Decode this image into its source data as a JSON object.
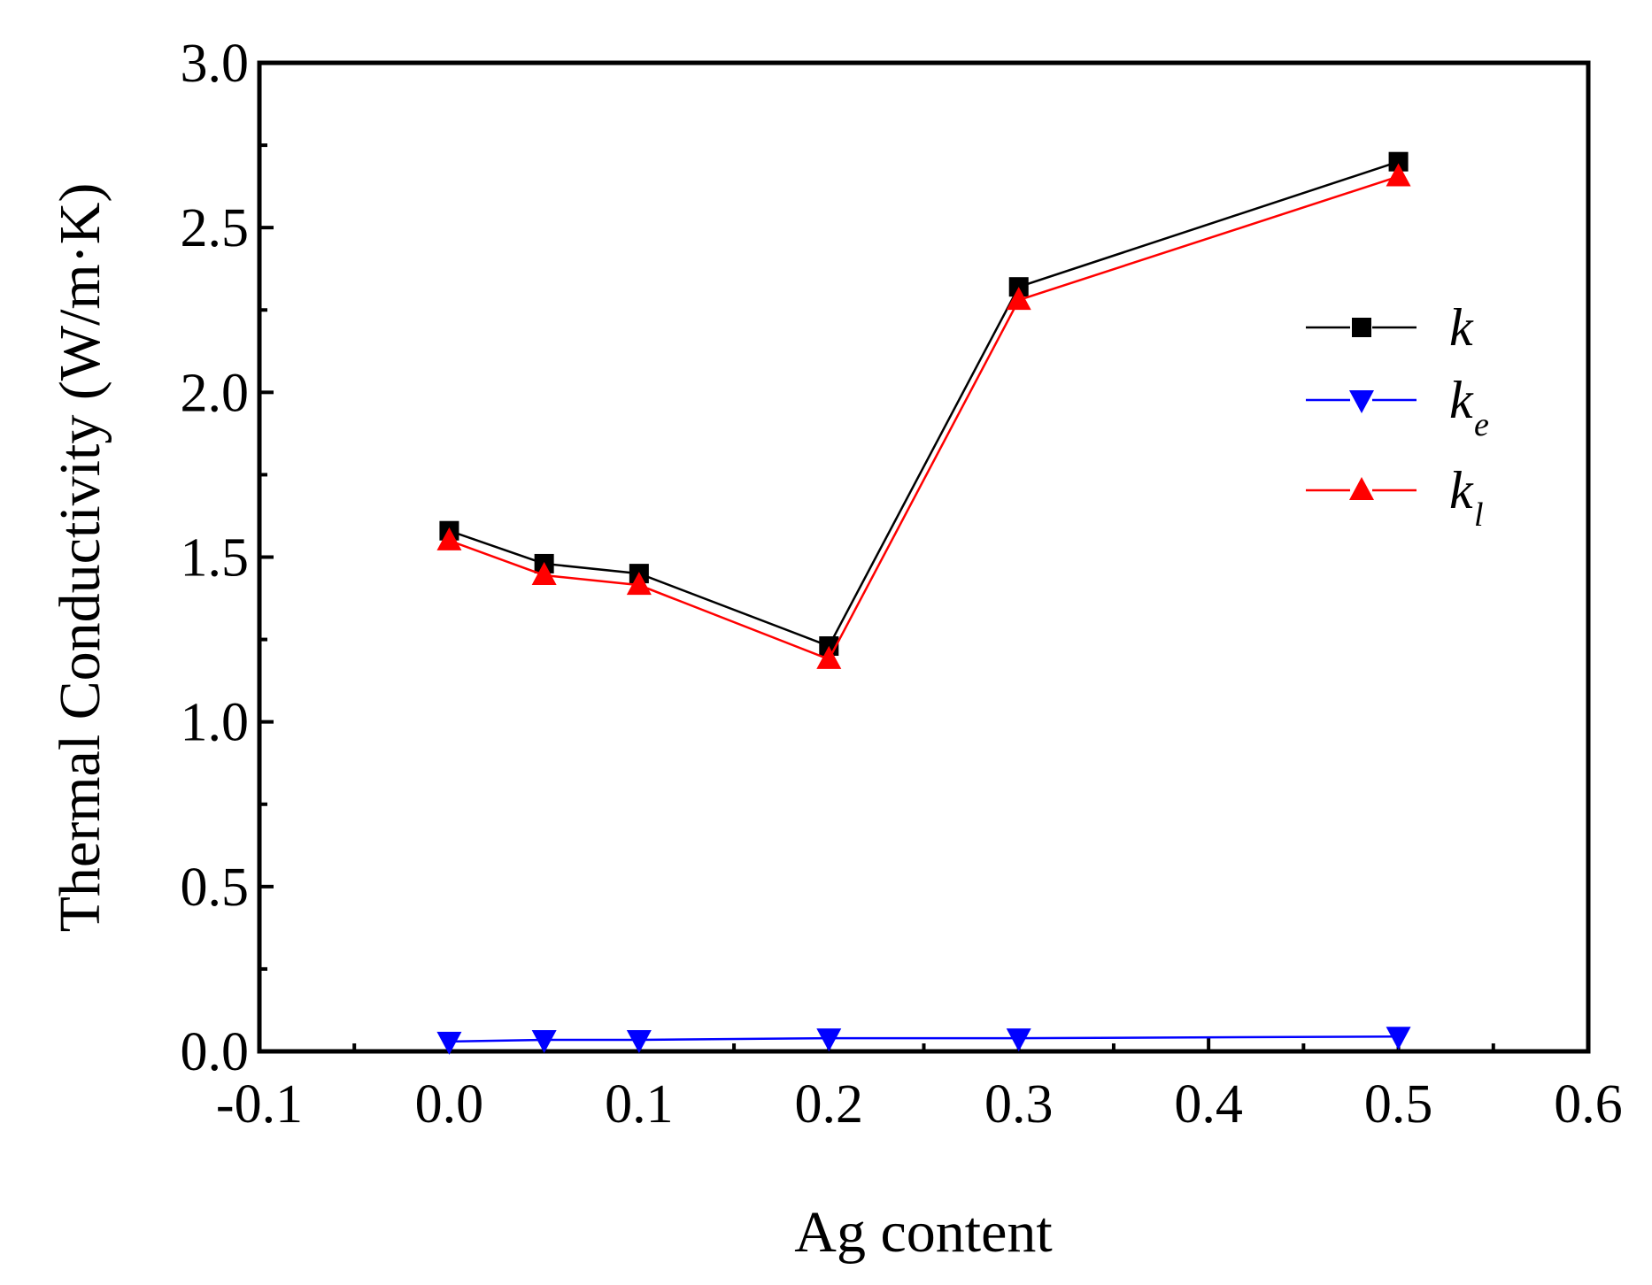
{
  "chart_data": {
    "type": "line",
    "title": "",
    "xlabel": "Ag content",
    "ylabel": "Thermal Conductivity (W/m·K)",
    "xlim": [
      -0.1,
      0.6
    ],
    "ylim": [
      0.0,
      3.0
    ],
    "xticks": [
      -0.1,
      0.0,
      0.1,
      0.2,
      0.3,
      0.4,
      0.5,
      0.6
    ],
    "xtick_labels": [
      "-0.1",
      "0.0",
      "0.1",
      "0.2",
      "0.3",
      "0.4",
      "0.5",
      "0.6"
    ],
    "yticks": [
      0.0,
      0.5,
      1.0,
      1.5,
      2.0,
      2.5,
      3.0
    ],
    "ytick_labels": [
      "0.0",
      "0.5",
      "1.0",
      "1.5",
      "2.0",
      "2.5",
      "3.0"
    ],
    "grid": false,
    "legend_position": "top-right",
    "x": [
      0.0,
      0.05,
      0.1,
      0.2,
      0.3,
      0.5
    ],
    "series": [
      {
        "name": "k",
        "label_main": "k",
        "label_sub": "",
        "color": "#000000",
        "marker": "square",
        "values": [
          1.58,
          1.48,
          1.45,
          1.23,
          2.32,
          2.7
        ]
      },
      {
        "name": "ke",
        "label_main": "k",
        "label_sub": "e",
        "color": "#0000ff",
        "marker": "triangle-down",
        "values": [
          0.03,
          0.035,
          0.035,
          0.04,
          0.04,
          0.045
        ]
      },
      {
        "name": "kl",
        "label_main": "k",
        "label_sub": "l",
        "color": "#ff0000",
        "marker": "triangle-up",
        "values": [
          1.55,
          1.445,
          1.415,
          1.19,
          2.28,
          2.655
        ]
      }
    ]
  }
}
